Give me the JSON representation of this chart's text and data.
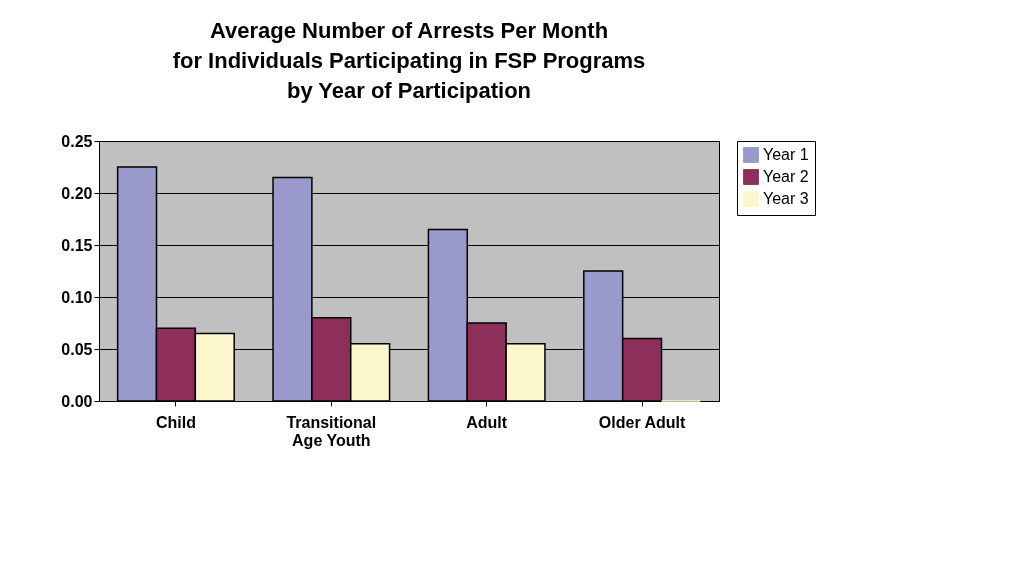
{
  "chart_data": {
    "type": "bar",
    "title": "Average Number of Arrests Per Month\nfor Individuals Participating in FSP Programs\nby Year of Participation",
    "categories": [
      "Child",
      "Transitional Age Youth",
      "Adult",
      "Older Adult"
    ],
    "series": [
      {
        "name": "Year 1",
        "color": "#9999cc",
        "values": [
          0.225,
          0.215,
          0.165,
          0.125
        ]
      },
      {
        "name": "Year 2",
        "color": "#8e2e5a",
        "values": [
          0.07,
          0.08,
          0.075,
          0.06
        ]
      },
      {
        "name": "Year 3",
        "color": "#fbf6cc",
        "values": [
          0.065,
          0.055,
          0.055,
          0
        ]
      }
    ],
    "ylim": [
      0,
      0.25
    ],
    "yticks": [
      {
        "value": 0,
        "label": "0.00"
      },
      {
        "value": 0.05,
        "label": "0.05"
      },
      {
        "value": 0.1,
        "label": "0.10"
      },
      {
        "value": 0.15,
        "label": "0.15"
      },
      {
        "value": 0.2,
        "label": "0.20"
      },
      {
        "value": 0.25,
        "label": "0.25"
      }
    ],
    "grid": "y",
    "legend": "right"
  }
}
